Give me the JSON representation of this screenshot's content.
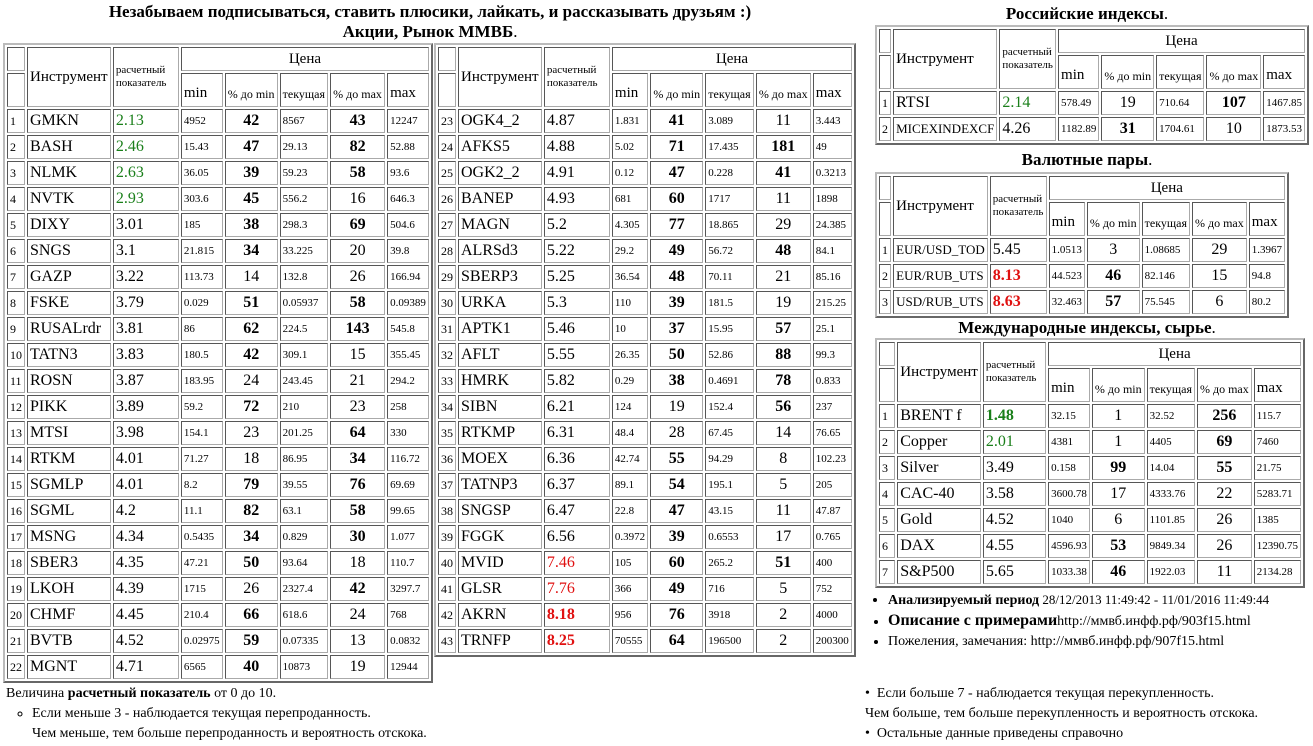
{
  "header": {
    "line1": "Незабываем подписываться, ставить плюсики, лайкать, и рассказывать друзьям :)",
    "line2": "Акции, Рынок ММВБ",
    "dot": "."
  },
  "columns": {
    "instrument": "Инструмент",
    "rating": "расчетный показатель",
    "price": "Цена",
    "min": "min",
    "pct_min": "% до min",
    "current": "текущая",
    "pct_max": "% до max",
    "max": "max"
  },
  "stocks_left": {
    "rows": [
      [
        "1",
        "GMKN",
        "2.13",
        "4952",
        "42",
        "8567",
        "43",
        "12247"
      ],
      [
        "2",
        "BASH",
        "2.46",
        "15.43",
        "47",
        "29.13",
        "82",
        "52.88"
      ],
      [
        "3",
        "NLMK",
        "2.63",
        "36.05",
        "39",
        "59.23",
        "58",
        "93.6"
      ],
      [
        "4",
        "NVTK",
        "2.93",
        "303.6",
        "45",
        "556.2",
        "16",
        "646.3"
      ],
      [
        "5",
        "DIXY",
        "3.01",
        "185",
        "38",
        "298.3",
        "69",
        "504.6"
      ],
      [
        "6",
        "SNGS",
        "3.1",
        "21.815",
        "34",
        "33.225",
        "20",
        "39.8"
      ],
      [
        "7",
        "GAZP",
        "3.22",
        "113.73",
        "14",
        "132.8",
        "26",
        "166.94"
      ],
      [
        "8",
        "FSKE",
        "3.79",
        "0.029",
        "51",
        "0.05937",
        "58",
        "0.09389"
      ],
      [
        "9",
        "RUSALrdr",
        "3.81",
        "86",
        "62",
        "224.5",
        "143",
        "545.8"
      ],
      [
        "10",
        "TATN3",
        "3.83",
        "180.5",
        "42",
        "309.1",
        "15",
        "355.45"
      ],
      [
        "11",
        "ROSN",
        "3.87",
        "183.95",
        "24",
        "243.45",
        "21",
        "294.2"
      ],
      [
        "12",
        "PIKK",
        "3.89",
        "59.2",
        "72",
        "210",
        "23",
        "258"
      ],
      [
        "13",
        "MTSI",
        "3.98",
        "154.1",
        "23",
        "201.25",
        "64",
        "330"
      ],
      [
        "14",
        "RTKM",
        "4.01",
        "71.27",
        "18",
        "86.95",
        "34",
        "116.72"
      ],
      [
        "15",
        "SGMLP",
        "4.01",
        "8.2",
        "79",
        "39.55",
        "76",
        "69.69"
      ],
      [
        "16",
        "SGML",
        "4.2",
        "11.1",
        "82",
        "63.1",
        "58",
        "99.65"
      ],
      [
        "17",
        "MSNG",
        "4.34",
        "0.5435",
        "34",
        "0.829",
        "30",
        "1.077"
      ],
      [
        "18",
        "SBER3",
        "4.35",
        "47.21",
        "50",
        "93.64",
        "18",
        "110.7"
      ],
      [
        "19",
        "LKOH",
        "4.39",
        "1715",
        "26",
        "2327.4",
        "42",
        "3297.7"
      ],
      [
        "20",
        "CHMF",
        "4.45",
        "210.4",
        "66",
        "618.6",
        "24",
        "768"
      ],
      [
        "21",
        "BVTB",
        "4.52",
        "0.02975",
        "59",
        "0.07335",
        "13",
        "0.0832"
      ],
      [
        "22",
        "MGNT",
        "4.71",
        "6565",
        "40",
        "10873",
        "19",
        "12944"
      ]
    ]
  },
  "stocks_right": {
    "rows": [
      [
        "23",
        "OGK4_2",
        "4.87",
        "1.831",
        "41",
        "3.089",
        "11",
        "3.443"
      ],
      [
        "24",
        "AFKS5",
        "4.88",
        "5.02",
        "71",
        "17.435",
        "181",
        "49"
      ],
      [
        "25",
        "OGK2_2",
        "4.91",
        "0.12",
        "47",
        "0.228",
        "41",
        "0.3213"
      ],
      [
        "26",
        "BANEP",
        "4.93",
        "681",
        "60",
        "1717",
        "11",
        "1898"
      ],
      [
        "27",
        "MAGN",
        "5.2",
        "4.305",
        "77",
        "18.865",
        "29",
        "24.385"
      ],
      [
        "28",
        "ALRSd3",
        "5.22",
        "29.2",
        "49",
        "56.72",
        "48",
        "84.1"
      ],
      [
        "29",
        "SBERP3",
        "5.25",
        "36.54",
        "48",
        "70.11",
        "21",
        "85.16"
      ],
      [
        "30",
        "URKA",
        "5.3",
        "110",
        "39",
        "181.5",
        "19",
        "215.25"
      ],
      [
        "31",
        "APTK1",
        "5.46",
        "10",
        "37",
        "15.95",
        "57",
        "25.1"
      ],
      [
        "32",
        "AFLT",
        "5.55",
        "26.35",
        "50",
        "52.86",
        "88",
        "99.3"
      ],
      [
        "33",
        "HMRK",
        "5.82",
        "0.29",
        "38",
        "0.4691",
        "78",
        "0.833"
      ],
      [
        "34",
        "SIBN",
        "6.21",
        "124",
        "19",
        "152.4",
        "56",
        "237"
      ],
      [
        "35",
        "RTKMP",
        "6.31",
        "48.4",
        "28",
        "67.45",
        "14",
        "76.65"
      ],
      [
        "36",
        "MOEX",
        "6.36",
        "42.74",
        "55",
        "94.29",
        "8",
        "102.23"
      ],
      [
        "37",
        "TATNP3",
        "6.37",
        "89.1",
        "54",
        "195.1",
        "5",
        "205"
      ],
      [
        "38",
        "SNGSP",
        "6.47",
        "22.8",
        "47",
        "43.15",
        "11",
        "47.87"
      ],
      [
        "39",
        "FGGK",
        "6.56",
        "0.3972",
        "39",
        "0.6553",
        "17",
        "0.765"
      ],
      [
        "40",
        "MVID",
        "7.46",
        "105",
        "60",
        "265.2",
        "51",
        "400"
      ],
      [
        "41",
        "GLSR",
        "7.76",
        "366",
        "49",
        "716",
        "5",
        "752"
      ],
      [
        "42",
        "AKRN",
        "8.18",
        "956",
        "76",
        "3918",
        "2",
        "4000"
      ],
      [
        "43",
        "TRNFP",
        "8.25",
        "70555",
        "64",
        "196500",
        "2",
        "200300"
      ]
    ]
  },
  "russian": {
    "title": "Российские индексы",
    "rows": [
      [
        "1",
        "RTSI",
        "2.14",
        "578.49",
        "19",
        "710.64",
        "107",
        "1467.85"
      ],
      [
        "2",
        "MICEXINDEXCF",
        "4.26",
        "1182.89",
        "31",
        "1704.61",
        "10",
        "1873.53"
      ]
    ]
  },
  "fx": {
    "title": "Валютные пары",
    "rows": [
      [
        "1",
        "EUR/USD_TOD",
        "5.45",
        "1.0513",
        "3",
        "1.08685",
        "29",
        "1.3967"
      ],
      [
        "2",
        "EUR/RUB_UTS",
        "8.13",
        "44.523",
        "46",
        "82.146",
        "15",
        "94.8"
      ],
      [
        "3",
        "USD/RUB_UTS",
        "8.63",
        "32.463",
        "57",
        "75.545",
        "6",
        "80.2"
      ]
    ]
  },
  "intl": {
    "title": "Международные индексы, сырье",
    "rows": [
      [
        "1",
        "BRENT f",
        "1.48",
        "32.15",
        "1",
        "32.52",
        "256",
        "115.7"
      ],
      [
        "2",
        "Copper",
        "2.01",
        "4381",
        "1",
        "4405",
        "69",
        "7460"
      ],
      [
        "3",
        "Silver",
        "3.49",
        "0.158",
        "99",
        "14.04",
        "55",
        "21.75"
      ],
      [
        "4",
        "CAC-40",
        "3.58",
        "3600.78",
        "17",
        "4333.76",
        "22",
        "5283.71"
      ],
      [
        "5",
        "Gold",
        "4.52",
        "1040",
        "6",
        "1101.85",
        "26",
        "1385"
      ],
      [
        "6",
        "DAX",
        "4.55",
        "4596.93",
        "53",
        "9849.34",
        "26",
        "12390.75"
      ],
      [
        "7",
        "S&P500",
        "5.65",
        "1033.38",
        "46",
        "1922.03",
        "11",
        "2134.28"
      ]
    ]
  },
  "info": {
    "period_label": "Анализируемый период",
    "period_value": "28/12/2013 11:49:42 - 11/01/2016 11:49:44",
    "desc_label": "Описание с примерами",
    "desc_link": "http://ммвб.инфф.рф/903f15.html",
    "wish_label": "Пожеления, замечания:",
    "wish_link": "http://ммвб.инфф.рф/907f15.html"
  },
  "legend_left": {
    "prefix": "Величина",
    "bold": "расчетный показатель",
    "suffix": "от 0 до 10.",
    "item": "Если меньше 3 - наблюдается текущая перепроданность.",
    "item2": "Чем меньше, тем больше перепроданность и вероятность отскока."
  },
  "legend_right": {
    "item1": "Если больше 7 - наблюдается текущая перекупленность.",
    "line2": "Чем больше, тем больше перекупленность и вероятность отскока.",
    "item3": "Остальные данные приведены справочно"
  },
  "colors": {
    "oversold": "#1a7f1a",
    "overbought": "#e01010"
  }
}
